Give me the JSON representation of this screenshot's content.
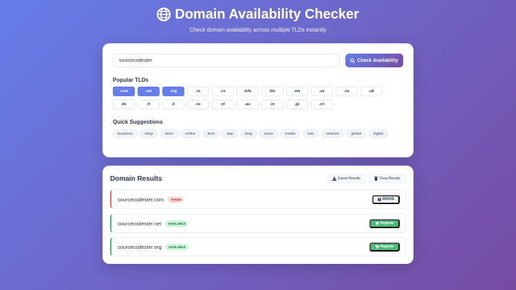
{
  "header": {
    "title": "Domain Availability Checker",
    "subtitle": "Check domain availability across multiple TLDs instantly",
    "icon": "globe-icon"
  },
  "search": {
    "value": "sourcecodester",
    "button_label": "Check Availability"
  },
  "tlds": {
    "label": "Popular TLDs",
    "items": [
      {
        "label": ".com",
        "selected": true
      },
      {
        "label": ".net",
        "selected": true
      },
      {
        "label": ".org",
        "selected": true
      },
      {
        "label": ".io"
      },
      {
        "label": ".co"
      },
      {
        "label": ".info"
      },
      {
        "label": ".biz"
      },
      {
        "label": ".me"
      },
      {
        "label": ".us"
      },
      {
        "label": ".ca"
      },
      {
        "label": ".uk"
      },
      {
        "label": ".de"
      },
      {
        "label": ".fr"
      },
      {
        "label": ".it"
      },
      {
        "label": ".es"
      },
      {
        "label": ".nl"
      },
      {
        "label": ".au"
      },
      {
        "label": ".in"
      },
      {
        "label": ".jp"
      },
      {
        "label": ".cn"
      }
    ]
  },
  "suggestions": {
    "label": "Quick Suggestions",
    "items": [
      "business",
      "shop",
      "store",
      "online",
      "tech",
      "app",
      "blog",
      "news",
      "media",
      "hub",
      "network",
      "global",
      "digital"
    ]
  },
  "results": {
    "title": "Domain Results",
    "export_label": "Export Results",
    "clear_label": "Clear Results",
    "items": [
      {
        "domain": "sourcecodester.com",
        "status": "TAKEN",
        "action": "WHOIS"
      },
      {
        "domain": "sourcecodester.net",
        "status": "AVAILABLE",
        "action": "Register"
      },
      {
        "domain": "sourcecodester.org",
        "status": "AVAILABLE",
        "action": "Register"
      }
    ]
  },
  "colors": {
    "accent": "#667eea",
    "accent2": "#764ba2",
    "taken": "#f56565",
    "available": "#48bb78"
  }
}
